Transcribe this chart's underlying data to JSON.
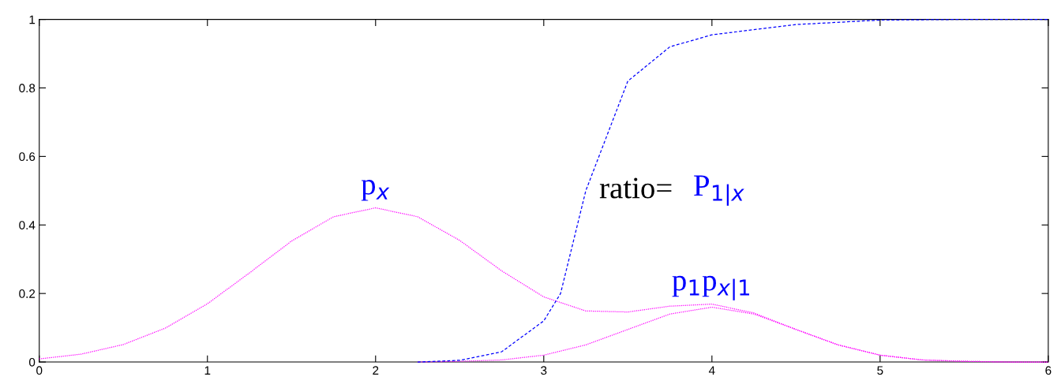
{
  "chart_data": {
    "type": "line",
    "xlim": [
      0,
      6
    ],
    "ylim": [
      0,
      1
    ],
    "xticks": [
      0,
      1,
      2,
      3,
      4,
      5,
      6
    ],
    "yticks": [
      0,
      0.2,
      0.4,
      0.6,
      0.8,
      1
    ],
    "grid": false,
    "legend": false,
    "line_style": "dotted",
    "marker": "none",
    "series": [
      {
        "color": "#ff00ff",
        "x": [
          0,
          0.25,
          0.5,
          0.75,
          1,
          1.25,
          1.5,
          1.75,
          2,
          2.25,
          2.5,
          2.75,
          3,
          3.25,
          3.5,
          3.75,
          4,
          4.25,
          4.5,
          4.75,
          5,
          5.25,
          5.5,
          5.75,
          6
        ],
        "values": [
          0.009,
          0.023,
          0.051,
          0.099,
          0.17,
          0.26,
          0.353,
          0.424,
          0.45,
          0.424,
          0.355,
          0.266,
          0.19,
          0.149,
          0.146,
          0.163,
          0.169,
          0.143,
          0.095,
          0.05,
          0.02,
          0.006,
          0.002,
          0,
          0
        ]
      },
      {
        "color": "#ff00ff",
        "x": [
          2.25,
          2.5,
          2.75,
          3,
          3.25,
          3.5,
          3.75,
          4,
          4.25,
          4.5,
          4.75,
          5,
          5.25,
          5.5,
          5.75,
          6
        ],
        "values": [
          0,
          0.002,
          0.006,
          0.02,
          0.05,
          0.095,
          0.14,
          0.16,
          0.14,
          0.095,
          0.05,
          0.02,
          0.006,
          0.002,
          0,
          0
        ]
      },
      {
        "color": "#0000ff",
        "line_style": "dashed",
        "x": [
          2.25,
          2.5,
          2.75,
          3,
          3.1,
          3.25,
          3.5,
          3.75,
          4,
          4.5,
          5,
          5.5,
          6
        ],
        "values": [
          0,
          0.005,
          0.03,
          0.12,
          0.2,
          0.5,
          0.82,
          0.92,
          0.955,
          0.985,
          0.998,
          1,
          1
        ]
      }
    ],
    "annotations": [
      {
        "text": "p$_{x}$",
        "x": 2,
        "y": 0.45
      },
      "ratio=",
      "P$_{1|x}$",
      {
        "text": "p$_{1}$p$_{x|1}$",
        "x": 4,
        "y": 0.16
      }
    ]
  }
}
